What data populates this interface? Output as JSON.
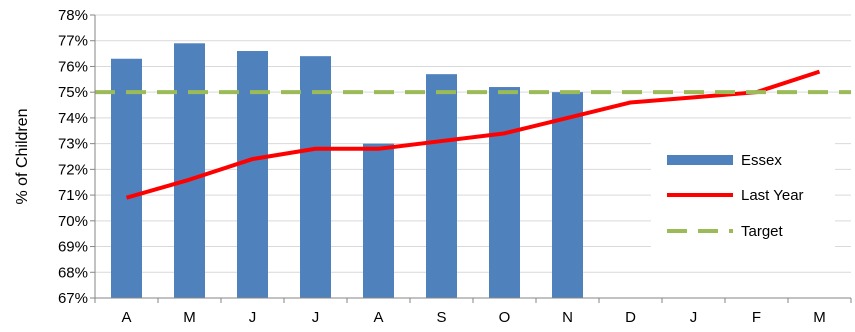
{
  "chart_data": {
    "type": "bar",
    "title": "",
    "xlabel": "",
    "ylabel": "% of Children",
    "ylim": [
      67,
      78
    ],
    "y_ticks": [
      "67%",
      "68%",
      "69%",
      "70%",
      "71%",
      "72%",
      "73%",
      "74%",
      "75%",
      "76%",
      "77%",
      "78%"
    ],
    "categories": [
      "A",
      "M",
      "J",
      "J",
      "A",
      "S",
      "O",
      "N",
      "D",
      "J",
      "F",
      "M"
    ],
    "grid": true,
    "legend_position": "right",
    "series": [
      {
        "name": "Essex",
        "kind": "bar",
        "color": "#4F81BD",
        "values": [
          76.3,
          76.9,
          76.6,
          76.4,
          73.0,
          75.7,
          75.2,
          75.0,
          null,
          null,
          null,
          null
        ]
      },
      {
        "name": "Last Year",
        "kind": "line",
        "color": "#FF0000",
        "values": [
          70.9,
          71.6,
          72.4,
          72.8,
          72.8,
          73.1,
          73.4,
          74.0,
          74.6,
          74.8,
          75.0,
          75.8
        ]
      },
      {
        "name": "Target",
        "kind": "dashed-line",
        "color": "#9BBB59",
        "values": [
          75,
          75,
          75,
          75,
          75,
          75,
          75,
          75,
          75,
          75,
          75,
          75
        ]
      }
    ]
  }
}
